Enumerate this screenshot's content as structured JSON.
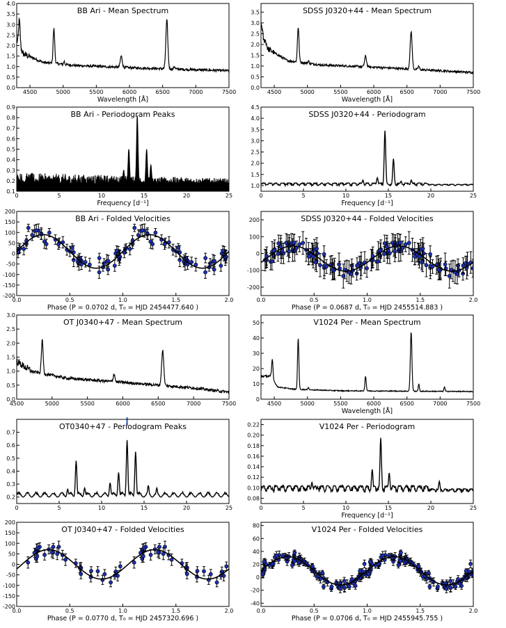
{
  "chart_data": [
    {
      "id": "bbari-spec",
      "type": "line",
      "kind": "spectrum",
      "title": "BB Ari - Mean Spectrum",
      "xlabel": "Wavelength [Å]",
      "ylabel": "",
      "xlim": [
        4300,
        7500
      ],
      "ylim": [
        0.0,
        4.0
      ],
      "xticks": [
        "4500",
        "5000",
        "5500",
        "6000",
        "6500",
        "7000",
        "7500"
      ],
      "yticks": [
        "0.0",
        "0.5",
        "1.0",
        "1.5",
        "2.0",
        "2.5",
        "3.0",
        "3.5",
        "4.0"
      ],
      "continuum": [
        [
          4300,
          2.2
        ],
        [
          4400,
          1.6
        ],
        [
          4700,
          1.2
        ],
        [
          5200,
          1.05
        ],
        [
          6000,
          0.95
        ],
        [
          7500,
          0.8
        ]
      ],
      "lines": [
        [
          4340,
          3.2,
          12
        ],
        [
          4861,
          2.8,
          12
        ],
        [
          5015,
          1.25,
          8
        ],
        [
          5876,
          1.5,
          15
        ],
        [
          6563,
          3.2,
          15
        ],
        [
          6678,
          1.0,
          10
        ]
      ],
      "noise": 0.12
    },
    {
      "id": "sdss-spec",
      "type": "line",
      "kind": "spectrum",
      "title": "SDSS J0320+44 - Mean Spectrum",
      "xlabel": "Wavelength [Å]",
      "ylabel": "",
      "xlim": [
        4300,
        7500
      ],
      "ylim": [
        0.0,
        3.9
      ],
      "xticks": [
        "4500",
        "5000",
        "5500",
        "6000",
        "6500",
        "7000",
        "7500"
      ],
      "yticks": [
        "0.0",
        "0.5",
        "1.0",
        "1.5",
        "2.0",
        "2.5",
        "3.0",
        "3.5"
      ],
      "continuum": [
        [
          4300,
          3.0
        ],
        [
          4400,
          1.8
        ],
        [
          4700,
          1.25
        ],
        [
          5200,
          1.05
        ],
        [
          6000,
          0.95
        ],
        [
          7500,
          0.7
        ]
      ],
      "lines": [
        [
          4340,
          2.2,
          12
        ],
        [
          4861,
          2.8,
          12
        ],
        [
          5015,
          1.25,
          8
        ],
        [
          5876,
          1.45,
          15
        ],
        [
          6563,
          2.6,
          15
        ],
        [
          6678,
          1.0,
          10
        ]
      ],
      "noise": 0.1
    },
    {
      "id": "bbari-pgram",
      "type": "line",
      "kind": "periodogram",
      "title": "BB Ari - Periodogram Peaks",
      "xlabel": "Frequency [d⁻¹]",
      "ylabel": "",
      "xlim": [
        0,
        25
      ],
      "ylim": [
        0.1,
        0.9
      ],
      "xticks": [
        "0",
        "5",
        "10",
        "15",
        "20",
        "25"
      ],
      "yticks": [
        "0.1",
        "0.2",
        "0.3",
        "0.4",
        "0.5",
        "0.6",
        "0.7",
        "0.8",
        "0.9"
      ],
      "baseline": 0.17,
      "noise": 0.09,
      "dense": true,
      "peaks": [
        [
          13.2,
          0.5
        ],
        [
          14.2,
          0.82
        ],
        [
          15.3,
          0.5
        ],
        [
          15.8,
          0.35
        ],
        [
          12.6,
          0.3
        ]
      ]
    },
    {
      "id": "sdss-pgram",
      "type": "line",
      "kind": "periodogram",
      "title": "SDSS J0320+44 - Periodogram",
      "xlabel": "Frequency [d⁻¹]",
      "ylabel": "",
      "xlim": [
        0,
        25
      ],
      "ylim": [
        0.75,
        4.5
      ],
      "xticks": [
        "0",
        "5",
        "10",
        "15",
        "20",
        "25"
      ],
      "yticks": [
        "1.0",
        "1.5",
        "2.0",
        "2.5",
        "3.0",
        "3.5",
        "4.0",
        "4.5"
      ],
      "baseline": 1.0,
      "noise": 0.12,
      "dense": false,
      "peaks": [
        [
          14.6,
          3.45
        ],
        [
          15.6,
          2.2
        ],
        [
          13.7,
          1.35
        ],
        [
          12.0,
          1.25
        ],
        [
          17.7,
          1.25
        ],
        [
          16.5,
          1.2
        ]
      ]
    },
    {
      "id": "bbari-fold",
      "type": "scatter",
      "kind": "folded",
      "title": "BB Ari - Folded Velocities",
      "xlabel": "Phase (P =  0.0702 d,  T₀ = HJD 2454477.640 )",
      "ylabel": "",
      "xlim": [
        0,
        2
      ],
      "ylim": [
        -200,
        200
      ],
      "xticks": [
        "0.0",
        "0.5",
        "1.0",
        "1.5",
        "2.0"
      ],
      "yticks": [
        "-200",
        "-150",
        "-100",
        "-50",
        "0",
        "50",
        "100",
        "150",
        "200"
      ],
      "gamma": 10,
      "K": 80,
      "phi0": 0.0,
      "errorbar": 25,
      "scatter": 30,
      "npoints": 48
    },
    {
      "id": "sdss-fold",
      "type": "scatter",
      "kind": "folded",
      "title": "SDSS J0320+44 - Folded Velocities",
      "xlabel": "Phase (P =  0.0687 d,  T₀ = HJD 2455514.883 )",
      "ylabel": "",
      "xlim": [
        0,
        2
      ],
      "ylim": [
        -250,
        250
      ],
      "xticks": [
        "0.0",
        "0.5",
        "1.0",
        "1.5",
        "2.0"
      ],
      "yticks": [
        "-200",
        "-100",
        "0",
        "100",
        "200"
      ],
      "gamma": -30,
      "K": 75,
      "phi0": 0.05,
      "errorbar": 55,
      "scatter": 35,
      "npoints": 70
    },
    {
      "id": "ot-spec",
      "type": "line",
      "kind": "spectrum",
      "title": "OT J0340+47 - Mean Spectrum",
      "xlabel": "",
      "ylabel": "",
      "xlim": [
        4500,
        7500
      ],
      "ylim": [
        0.0,
        3.0
      ],
      "xticks": [
        "4500",
        "5000",
        "5500",
        "6000",
        "6500",
        "7000",
        "7500"
      ],
      "yticks": [
        "0.0",
        "0.5",
        "1.0",
        "1.5",
        "2.0",
        "2.5",
        "3.0"
      ],
      "continuum": [
        [
          4500,
          1.35
        ],
        [
          4700,
          1.0
        ],
        [
          5200,
          0.75
        ],
        [
          6000,
          0.6
        ],
        [
          7000,
          0.4
        ],
        [
          7500,
          0.25
        ]
      ],
      "lines": [
        [
          4861,
          2.1,
          12
        ],
        [
          5876,
          0.9,
          12
        ],
        [
          6563,
          1.75,
          15
        ],
        [
          4686,
          1.05,
          10
        ]
      ],
      "noise": 0.1
    },
    {
      "id": "v1024-spec",
      "type": "line",
      "kind": "spectrum",
      "title": "V1024 Per - Mean Spectrum",
      "xlabel": "Wavelength [Å]",
      "ylabel": "",
      "xlim": [
        4300,
        7500
      ],
      "ylim": [
        0,
        55
      ],
      "xticks": [
        "4500",
        "5000",
        "5500",
        "6000",
        "6500",
        "7000",
        "7500"
      ],
      "yticks": [
        "0",
        "10",
        "20",
        "30",
        "40",
        "50"
      ],
      "continuum": [
        [
          4450,
          15
        ],
        [
          4550,
          8
        ],
        [
          4800,
          6.5
        ],
        [
          5500,
          5.5
        ],
        [
          7500,
          5
        ]
      ],
      "lines": [
        [
          4471,
          26,
          10
        ],
        [
          4861,
          40,
          10
        ],
        [
          5015,
          8,
          7
        ],
        [
          5876,
          15,
          10
        ],
        [
          6563,
          44,
          12
        ],
        [
          6678,
          10,
          8
        ],
        [
          7065,
          8,
          8
        ]
      ],
      "noise": 0.6
    },
    {
      "id": "ot-pgram",
      "type": "line",
      "kind": "periodogram",
      "title": "OT0340+47 - Periodogram Peaks",
      "xlabel": "",
      "ylabel": "",
      "xlim": [
        0,
        25
      ],
      "ylim": [
        0.15,
        0.8
      ],
      "xticks": [
        "0",
        "5",
        "10",
        "15",
        "20",
        "25"
      ],
      "yticks": [
        "0.2",
        "0.3",
        "0.4",
        "0.5",
        "0.6",
        "0.7"
      ],
      "baseline": 0.2,
      "noise": 0.04,
      "dense": false,
      "smooth": true,
      "peaks": [
        [
          7.0,
          0.48
        ],
        [
          11.0,
          0.31
        ],
        [
          12.0,
          0.39
        ],
        [
          13.0,
          0.64
        ],
        [
          14.0,
          0.55
        ],
        [
          6.0,
          0.26
        ],
        [
          8.0,
          0.27
        ],
        [
          15.5,
          0.29
        ],
        [
          16.5,
          0.27
        ]
      ],
      "marker_freq": 13.0
    },
    {
      "id": "v1024-pgram",
      "type": "line",
      "kind": "periodogram",
      "title": "V1024 Per - Periodogram",
      "xlabel": "Frequency [d⁻¹]",
      "ylabel": "",
      "xlim": [
        0,
        25
      ],
      "ylim": [
        0.07,
        0.23
      ],
      "xticks": [
        "0",
        "5",
        "10",
        "15",
        "20",
        "25"
      ],
      "yticks": [
        "0.08",
        "0.10",
        "0.12",
        "0.14",
        "0.16",
        "0.18",
        "0.20",
        "0.22"
      ],
      "baseline": 0.092,
      "noise": 0.012,
      "dense": false,
      "peaks": [
        [
          14.1,
          0.195
        ],
        [
          13.1,
          0.135
        ],
        [
          15.1,
          0.128
        ],
        [
          21.0,
          0.112
        ],
        [
          6.0,
          0.11
        ]
      ]
    },
    {
      "id": "ot-fold",
      "type": "scatter",
      "kind": "folded",
      "title": "OT J0340+47 - Folded Velocities",
      "xlabel": "Phase (P =  0.0770 d,  T₀ = HJD 2457320.696 )",
      "ylabel": "",
      "xlim": [
        0,
        2
      ],
      "ylim": [
        -200,
        200
      ],
      "xticks": [
        "0.0",
        "0.5",
        "1.0",
        "1.5",
        "2.0"
      ],
      "yticks": [
        "-200",
        "-150",
        "-100",
        "-50",
        "0",
        "50",
        "100",
        "150",
        "200"
      ],
      "gamma": 0,
      "K": 70,
      "phi0": 0.05,
      "errorbar": 22,
      "scatter": 25,
      "npoints": 32
    },
    {
      "id": "v1024-fold",
      "type": "scatter",
      "kind": "folded",
      "title": "V1024 Per - Folded Velocities",
      "xlabel": "Phase (P =  0.0706 d,  T₀ = HJD 2455945.755 )",
      "ylabel": "",
      "xlim": [
        0,
        2
      ],
      "ylim": [
        -45,
        85
      ],
      "xticks": [
        "0.0",
        "0.5",
        "1.0",
        "1.5",
        "2.0"
      ],
      "yticks": [
        "-40",
        "-20",
        "0",
        "20",
        "40",
        "60",
        "80"
      ],
      "gamma": 10,
      "K": 22,
      "phi0": 0.0,
      "errorbar": 5,
      "scatter": 7,
      "npoints": 90
    }
  ]
}
